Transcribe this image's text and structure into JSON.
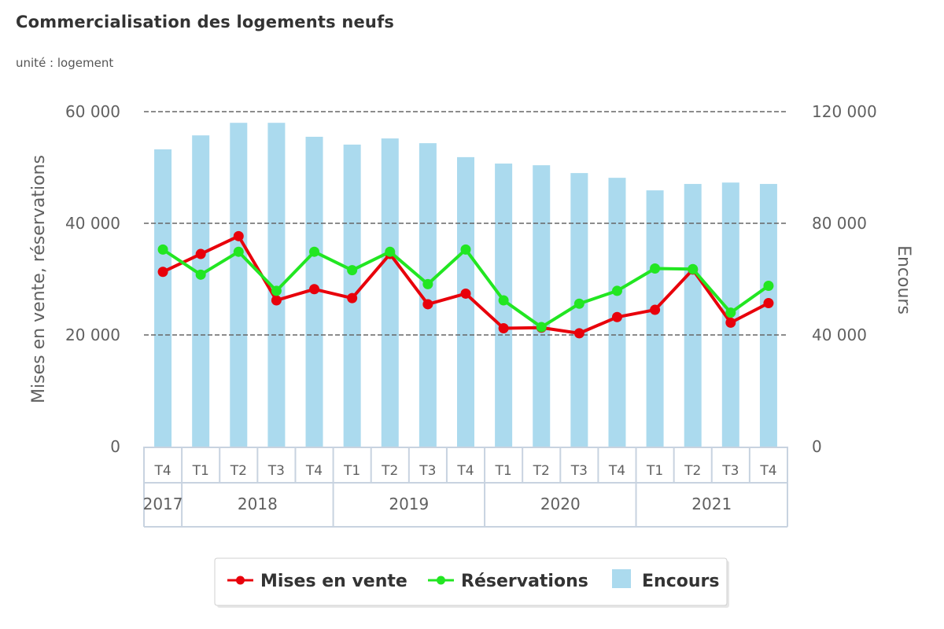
{
  "header": {
    "title": "Commercialisation des logements neufs",
    "subtitle": "unité : logement"
  },
  "colors": {
    "mises_en_vente": "#e8000b",
    "reservations": "#22e622",
    "encours": "#abdaee",
    "grid": "#666666",
    "axis_text": "#606060"
  },
  "chart_data": {
    "type": "bar+line",
    "title": "Commercialisation des logements neufs",
    "subtitle": "unité : logement",
    "categories": [
      "T4",
      "T1",
      "T2",
      "T3",
      "T4",
      "T1",
      "T2",
      "T3",
      "T4",
      "T1",
      "T2",
      "T3",
      "T4",
      "T1",
      "T2",
      "T3",
      "T4"
    ],
    "year_groups": [
      {
        "label": "2017",
        "count": 1
      },
      {
        "label": "2018",
        "count": 4
      },
      {
        "label": "2019",
        "count": 4
      },
      {
        "label": "2020",
        "count": 4
      },
      {
        "label": "2021",
        "count": 4
      }
    ],
    "y_left": {
      "label": "Mises en vente, réservations",
      "range": [
        0,
        60000
      ],
      "ticks": [
        0,
        20000,
        40000,
        60000
      ],
      "tick_labels": [
        "0",
        "20 000",
        "40 000",
        "60 000"
      ]
    },
    "y_right": {
      "label": "Encours",
      "range": [
        0,
        120000
      ],
      "ticks": [
        0,
        40000,
        80000,
        120000
      ],
      "tick_labels": [
        "0",
        "40 000",
        "80 000",
        "120 000"
      ]
    },
    "grid": true,
    "legend_position": "bottom-center",
    "series": [
      {
        "name": "Mises en vente",
        "type": "line",
        "axis": "left",
        "color": "#e8000b",
        "values": [
          31300,
          34500,
          37700,
          26200,
          28200,
          26600,
          34500,
          25500,
          27400,
          21200,
          21300,
          20300,
          23200,
          24500,
          31700,
          22200,
          25700
        ]
      },
      {
        "name": "Réservations",
        "type": "line",
        "axis": "left",
        "color": "#22e622",
        "values": [
          35300,
          30800,
          34900,
          27900,
          34900,
          31600,
          34900,
          29100,
          35300,
          26200,
          21400,
          25600,
          27900,
          31900,
          31800,
          24000,
          28800
        ]
      },
      {
        "name": "Encours",
        "type": "bar",
        "axis": "right",
        "color": "#abdaee",
        "values": [
          106500,
          111500,
          116000,
          116000,
          111000,
          108200,
          110400,
          108700,
          103700,
          101400,
          100800,
          98000,
          96300,
          91800,
          94100,
          94600,
          94100
        ]
      }
    ]
  }
}
